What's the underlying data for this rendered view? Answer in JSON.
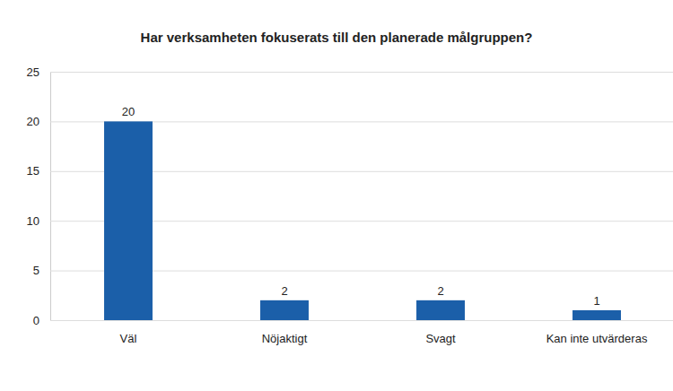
{
  "chart_data": {
    "type": "bar",
    "title": "Har verksamheten fokuserats till den planerade målgruppen?",
    "categories": [
      "Väl",
      "Nöjaktigt",
      "Svagt",
      "Kan inte utvärderas"
    ],
    "values": [
      20,
      2,
      2,
      1
    ],
    "color": "#1b5fa9",
    "ylim": [
      0,
      25
    ],
    "yticks": [
      0,
      5,
      10,
      15,
      20,
      25
    ],
    "grid": true,
    "data_labels": true
  }
}
